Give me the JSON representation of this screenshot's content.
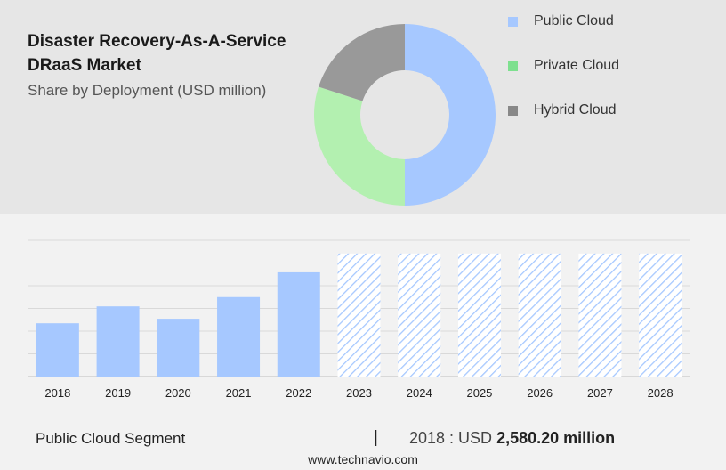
{
  "header": {
    "title": "Disaster Recovery-As-A-Service DRaaS Market",
    "subtitle": "Share by Deployment (USD million)"
  },
  "donut": {
    "segments": [
      {
        "label": "Public Cloud",
        "share": 0.5,
        "color": "#a6c8ff"
      },
      {
        "label": "Private Cloud",
        "share": 0.3,
        "color": "#b3f0b0"
      },
      {
        "label": "Hybrid Cloud",
        "share": 0.2,
        "color": "#999999"
      }
    ]
  },
  "legend": [
    {
      "label": "Public Cloud",
      "swatch_color": "#a6c8ff"
    },
    {
      "label": "Private Cloud",
      "swatch_color": "#7ee08f"
    },
    {
      "label": "Hybrid Cloud",
      "swatch_color": "#888888"
    }
  ],
  "chart_data": {
    "type": "bar",
    "categories": [
      "2018",
      "2019",
      "2020",
      "2021",
      "2022",
      "2023",
      "2024",
      "2025",
      "2026",
      "2027",
      "2028"
    ],
    "values": [
      2580.2,
      3400,
      2800,
      3850,
      5050,
      null,
      null,
      null,
      null,
      null,
      null
    ],
    "forecast_categories": [
      "2023",
      "2024",
      "2025",
      "2026",
      "2027",
      "2028"
    ],
    "forecast_style": "hatched",
    "bar_color": "#a6c8ff",
    "ylim": [
      0,
      6600
    ],
    "grid": true,
    "y_tick_labels_shown": false
  },
  "footer": {
    "segment_label": "Public Cloud Segment",
    "divider": "|",
    "year_prefix": "2018 : USD",
    "value": "2,580.20 million"
  },
  "website": "www.technavio.com"
}
